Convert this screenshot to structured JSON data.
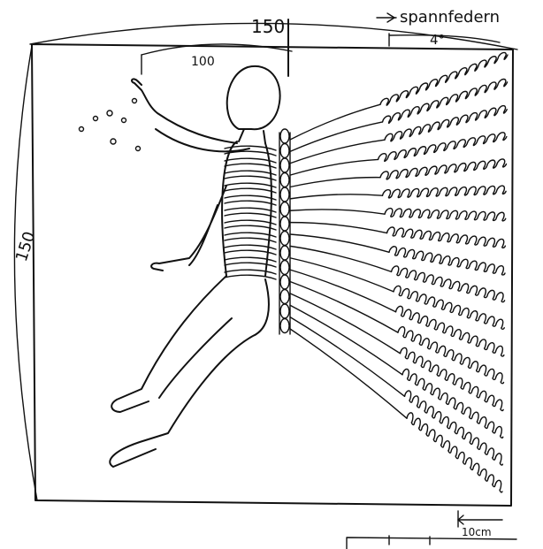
{
  "labels": {
    "top_width": "150",
    "left_height": "150",
    "inner_width": "100",
    "angle": "4°",
    "springs": "spannfedern",
    "spring_length": "10cm"
  },
  "spring_count": 17,
  "spine_coils": 14
}
